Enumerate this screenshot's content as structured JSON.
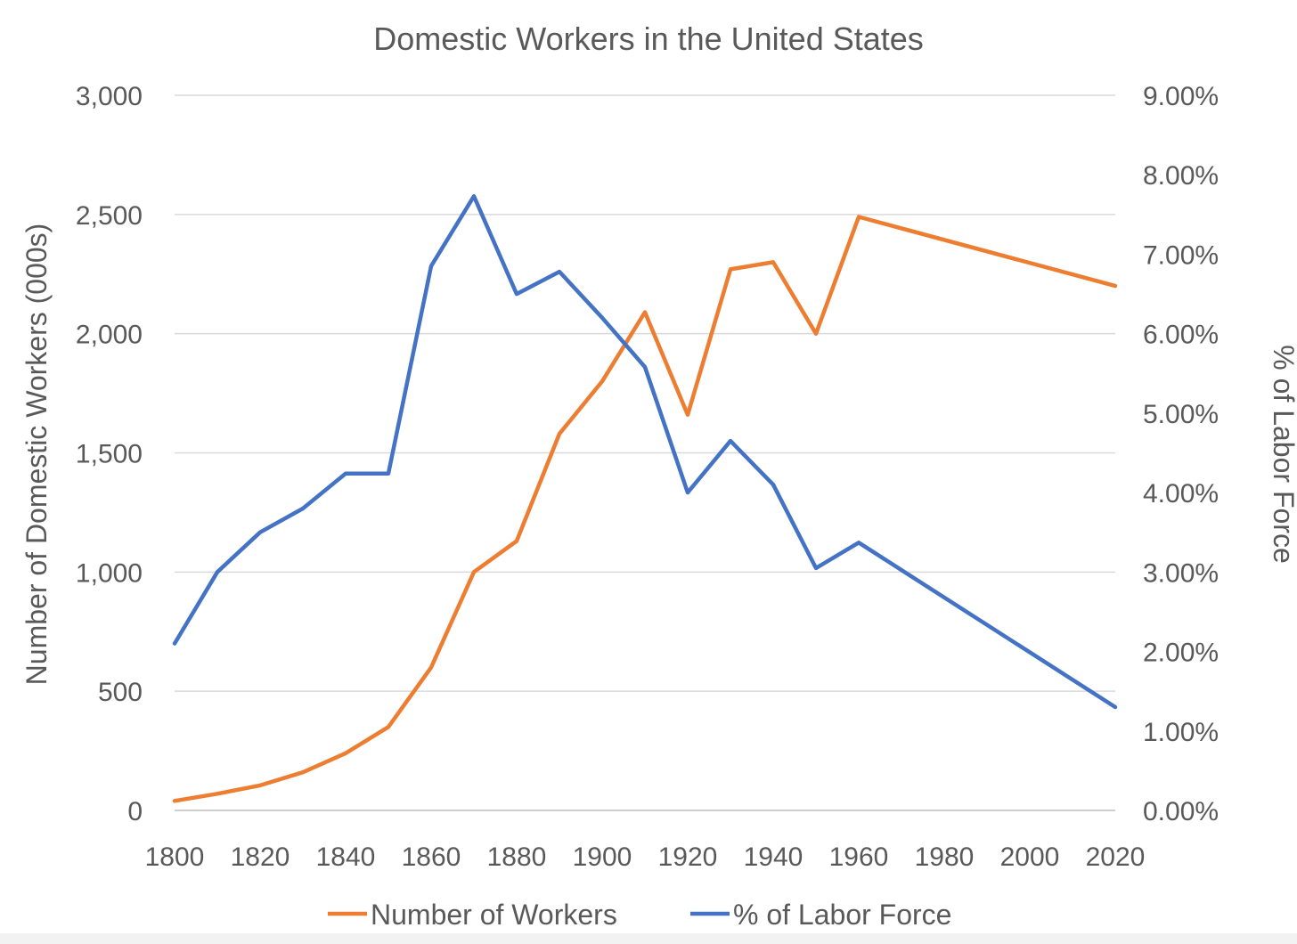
{
  "chart_data": {
    "type": "line",
    "title": "Domestic Workers in the United States",
    "xlabel": "",
    "ylabel": "Number of Domestic Workers (000s)",
    "y2label": "% of Labor Force",
    "xlim": [
      1800,
      2020
    ],
    "ylim": [
      0,
      3000
    ],
    "y2lim": [
      0,
      0.09
    ],
    "x_ticks": [
      1800,
      1820,
      1840,
      1860,
      1880,
      1900,
      1920,
      1940,
      1960,
      1980,
      2000,
      2020
    ],
    "x_tick_labels": [
      "1800",
      "1820",
      "1840",
      "1860",
      "1880",
      "1900",
      "1920",
      "1940",
      "1960",
      "1980",
      "2000",
      "2020"
    ],
    "y_ticks": [
      0,
      500,
      1000,
      1500,
      2000,
      2500,
      3000
    ],
    "y_tick_labels": [
      "0",
      "500",
      "1,000",
      "1,500",
      "2,000",
      "2,500",
      "3,000"
    ],
    "y2_ticks": [
      0,
      0.01,
      0.02,
      0.03,
      0.04,
      0.05,
      0.06,
      0.07,
      0.08,
      0.09
    ],
    "y2_tick_labels": [
      "0.00%",
      "1.00%",
      "2.00%",
      "3.00%",
      "4.00%",
      "5.00%",
      "6.00%",
      "7.00%",
      "8.00%",
      "9.00%"
    ],
    "grid": true,
    "legend": "bottom",
    "series": [
      {
        "name": "Number of Workers",
        "axis": "left",
        "color": "#ED7D31",
        "x": [
          1800,
          1810,
          1820,
          1830,
          1840,
          1850,
          1860,
          1870,
          1880,
          1890,
          1900,
          1910,
          1920,
          1930,
          1940,
          1950,
          1960,
          2020
        ],
        "values": [
          40,
          70,
          105,
          160,
          240,
          350,
          600,
          1000,
          1130,
          1580,
          1800,
          2090,
          1660,
          2270,
          2300,
          2000,
          2490,
          2200
        ]
      },
      {
        "name": "% of Labor Force",
        "axis": "right",
        "color": "#4472C4",
        "x": [
          1800,
          1810,
          1820,
          1830,
          1840,
          1850,
          1860,
          1870,
          1880,
          1890,
          1900,
          1910,
          1920,
          1930,
          1940,
          1950,
          1960,
          2020
        ],
        "values": [
          0.021,
          0.03,
          0.035,
          0.038,
          0.0424,
          0.0424,
          0.0685,
          0.0773,
          0.065,
          0.0678,
          0.062,
          0.0558,
          0.04,
          0.0465,
          0.041,
          0.0305,
          0.0337,
          0.013
        ]
      }
    ]
  }
}
